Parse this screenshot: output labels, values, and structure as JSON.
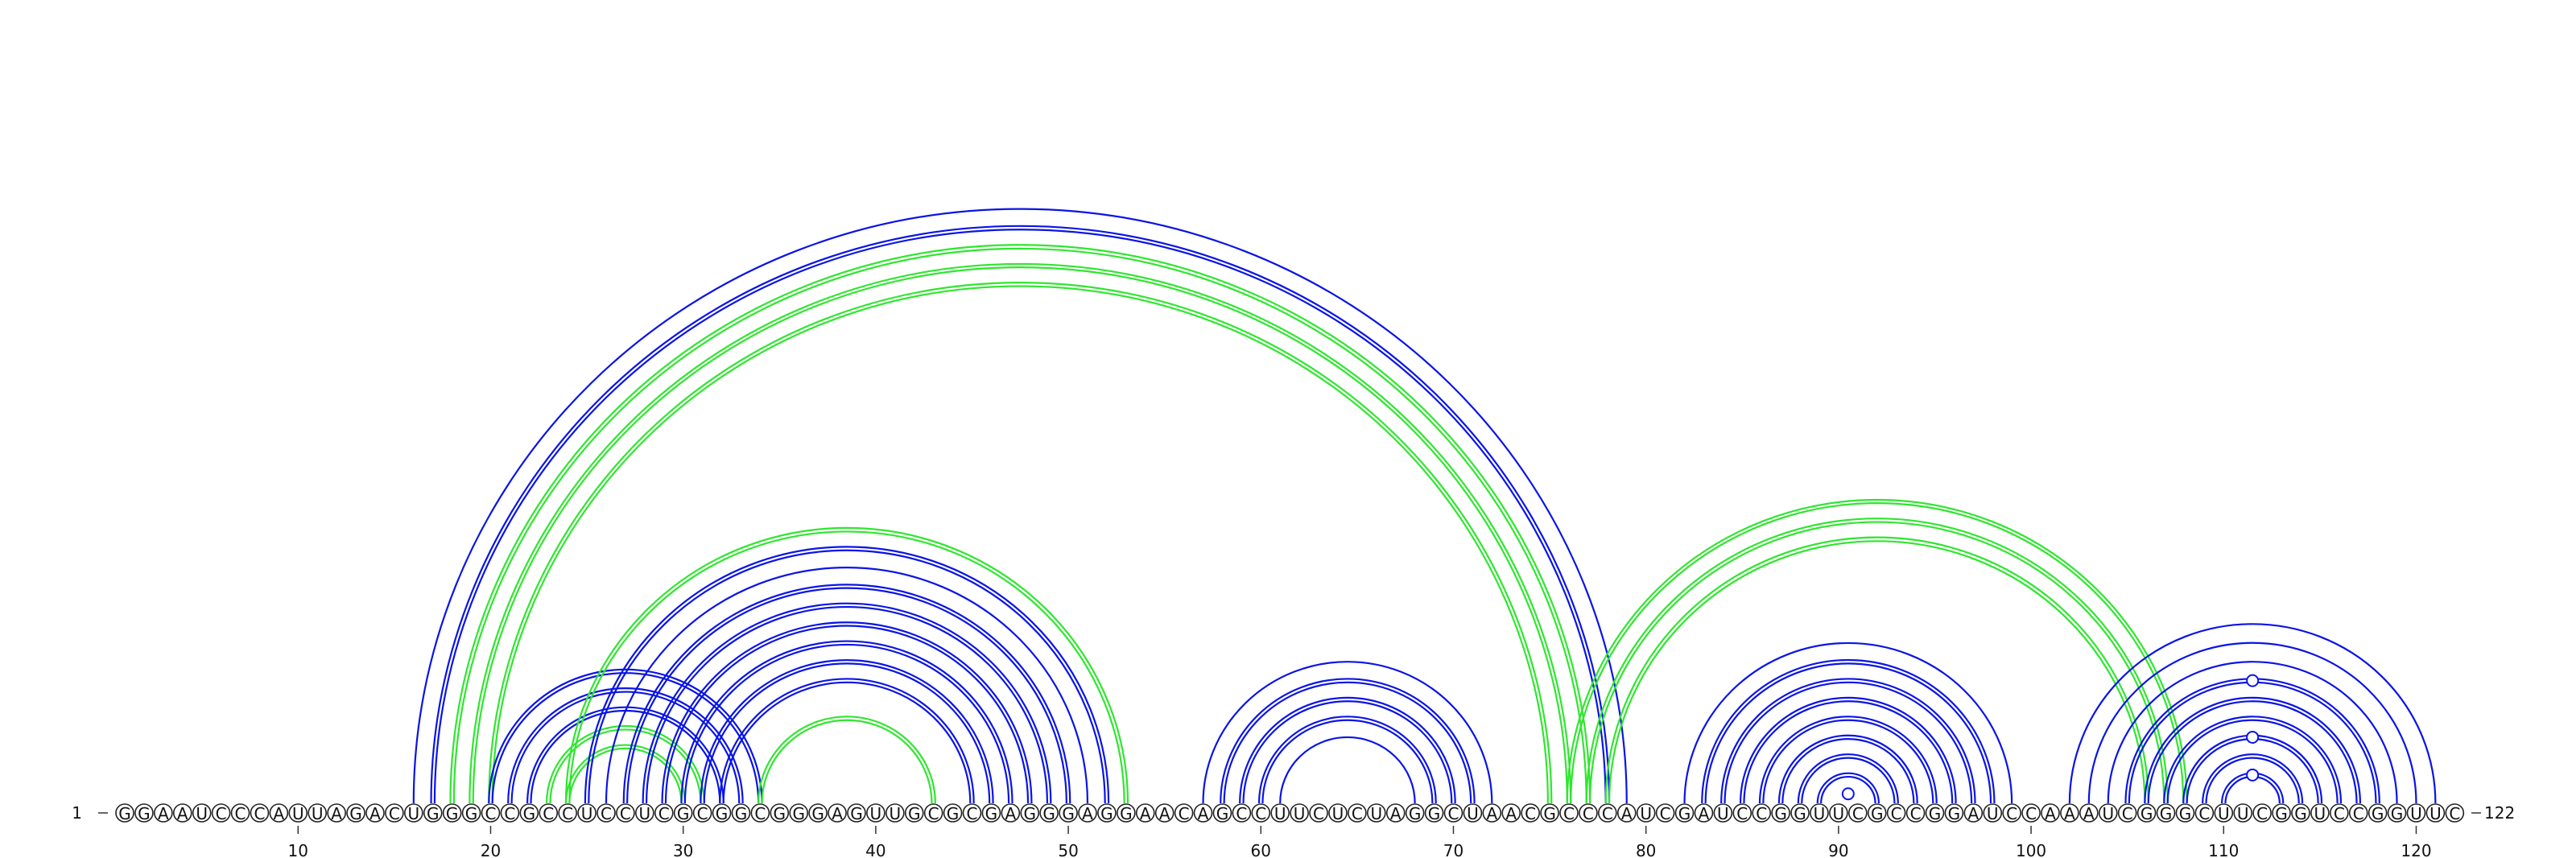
{
  "chart_data": {
    "type": "arc-diagram",
    "sequence": "GGAAUCCCAUUAGACUGGGCCGCCUCCUCGCGGCGGGAGUUGCGCGAGGGAGGAACAGCCUUCUCUAGGCUAACGCCCAUCGAUCCGGUUCGCCGGAUCCAAAUCGGGCUUCGGUCCGGUUC",
    "length": 122,
    "start_label": "1",
    "end_label": "122",
    "ticks": [
      10,
      20,
      30,
      40,
      50,
      60,
      70,
      80,
      90,
      100,
      110,
      120
    ],
    "colors": {
      "blue": "#0a14e6",
      "green": "#2fe62f"
    },
    "arcs": [
      {
        "i": 16,
        "j": 79,
        "color": "blue",
        "double": false
      },
      {
        "i": 17,
        "j": 78,
        "color": "blue",
        "double": true
      },
      {
        "i": 18,
        "j": 77,
        "color": "green",
        "double": true
      },
      {
        "i": 19,
        "j": 76,
        "color": "green",
        "double": true
      },
      {
        "i": 20,
        "j": 75,
        "color": "green",
        "double": true
      },
      {
        "i": 20,
        "j": 34,
        "color": "blue",
        "double": true
      },
      {
        "i": 21,
        "j": 33,
        "color": "blue",
        "double": true
      },
      {
        "i": 22,
        "j": 32,
        "color": "blue",
        "double": true
      },
      {
        "i": 23,
        "j": 31,
        "color": "green",
        "double": true
      },
      {
        "i": 24,
        "j": 30,
        "color": "green",
        "double": true
      },
      {
        "i": 24,
        "j": 53,
        "color": "green",
        "double": true
      },
      {
        "i": 25,
        "j": 52,
        "color": "blue",
        "double": true
      },
      {
        "i": 26,
        "j": 51,
        "color": "blue",
        "double": false
      },
      {
        "i": 27,
        "j": 50,
        "color": "blue",
        "double": true
      },
      {
        "i": 28,
        "j": 49,
        "color": "blue",
        "double": true
      },
      {
        "i": 29,
        "j": 48,
        "color": "blue",
        "double": true
      },
      {
        "i": 30,
        "j": 47,
        "color": "blue",
        "double": true
      },
      {
        "i": 31,
        "j": 46,
        "color": "blue",
        "double": true
      },
      {
        "i": 32,
        "j": 45,
        "color": "blue",
        "double": true
      },
      {
        "i": 34,
        "j": 43,
        "color": "green",
        "double": true
      },
      {
        "i": 57,
        "j": 72,
        "color": "blue",
        "double": false
      },
      {
        "i": 58,
        "j": 71,
        "color": "blue",
        "double": true
      },
      {
        "i": 59,
        "j": 70,
        "color": "blue",
        "double": true
      },
      {
        "i": 60,
        "j": 69,
        "color": "blue",
        "double": true
      },
      {
        "i": 61,
        "j": 68,
        "color": "blue",
        "double": false
      },
      {
        "i": 76,
        "j": 108,
        "color": "green",
        "double": true
      },
      {
        "i": 77,
        "j": 107,
        "color": "green",
        "double": true
      },
      {
        "i": 78,
        "j": 106,
        "color": "green",
        "double": true
      },
      {
        "i": 82,
        "j": 99,
        "color": "blue",
        "double": false
      },
      {
        "i": 83,
        "j": 98,
        "color": "blue",
        "double": true
      },
      {
        "i": 84,
        "j": 97,
        "color": "blue",
        "double": true
      },
      {
        "i": 85,
        "j": 96,
        "color": "blue",
        "double": true
      },
      {
        "i": 86,
        "j": 95,
        "color": "blue",
        "double": true
      },
      {
        "i": 87,
        "j": 94,
        "color": "blue",
        "double": true
      },
      {
        "i": 88,
        "j": 93,
        "color": "blue",
        "double": true
      },
      {
        "i": 89,
        "j": 92,
        "color": "blue",
        "double": true
      },
      {
        "i": 102,
        "j": 121,
        "color": "blue",
        "double": false
      },
      {
        "i": 103,
        "j": 120,
        "color": "blue",
        "double": false
      },
      {
        "i": 104,
        "j": 119,
        "color": "blue",
        "double": false
      },
      {
        "i": 105,
        "j": 118,
        "color": "blue",
        "double": true
      },
      {
        "i": 106,
        "j": 117,
        "color": "blue",
        "double": true
      },
      {
        "i": 107,
        "j": 116,
        "color": "blue",
        "double": true
      },
      {
        "i": 108,
        "j": 115,
        "color": "blue",
        "double": true
      },
      {
        "i": 109,
        "j": 114,
        "color": "blue",
        "double": true
      },
      {
        "i": 110,
        "j": 113,
        "color": "blue",
        "double": true
      }
    ],
    "markers": [
      {
        "center": 90.5,
        "depth": 0.5,
        "color": "blue"
      },
      {
        "center": 111.5,
        "depth": 1.5,
        "color": "blue"
      },
      {
        "center": 111.5,
        "depth": 3.5,
        "color": "blue"
      },
      {
        "center": 111.5,
        "depth": 6.5,
        "color": "blue"
      }
    ]
  }
}
